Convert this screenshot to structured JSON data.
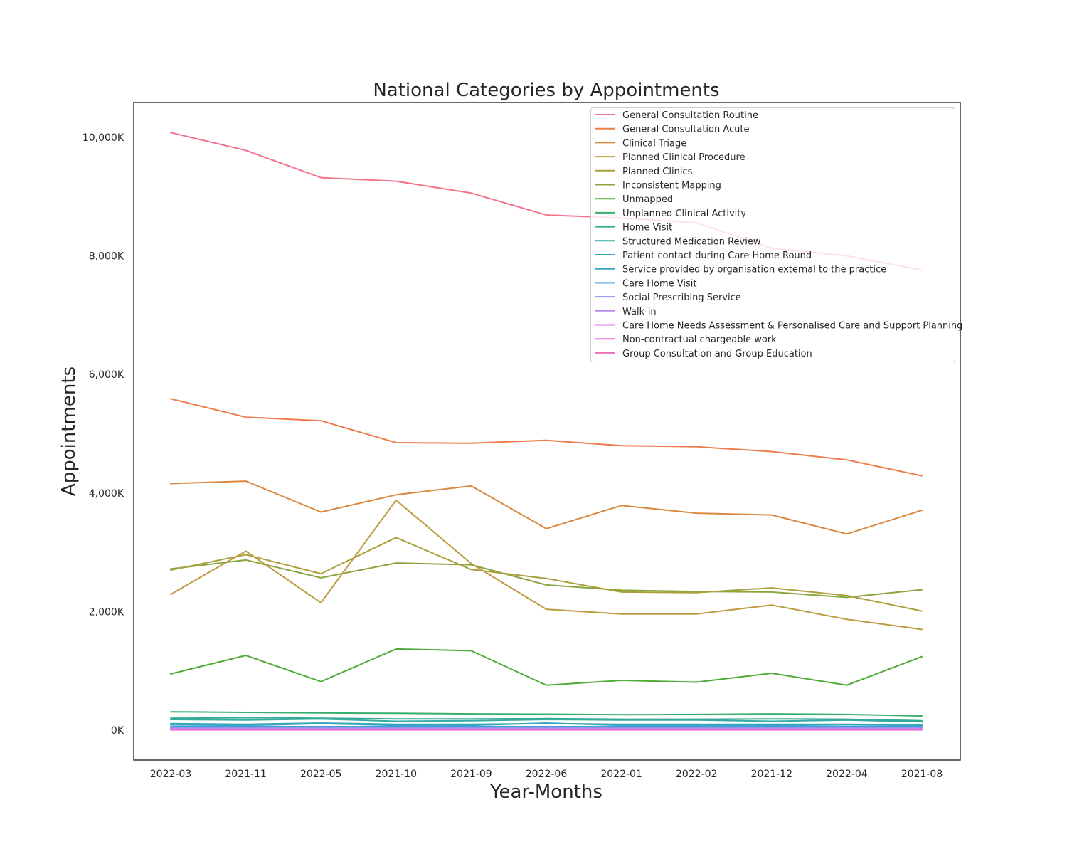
{
  "chart_data": {
    "type": "line",
    "title": "National Categories by Appointments",
    "xlabel": "Year-Months",
    "ylabel": "Appointments",
    "ylim": [
      -500,
      10600
    ],
    "yticks": [
      0,
      2000,
      4000,
      6000,
      8000,
      10000
    ],
    "ytick_labels": [
      "0K",
      "2,000K",
      "4,000K",
      "6,000K",
      "8,000K",
      "10,000K"
    ],
    "categories": [
      "2022-03",
      "2021-11",
      "2022-05",
      "2021-10",
      "2021-09",
      "2022-06",
      "2022-01",
      "2022-02",
      "2021-12",
      "2022-04",
      "2021-08"
    ],
    "grid": false,
    "legend_position": "top-right",
    "series": [
      {
        "name": "General Consultation Routine",
        "color": "#f4718a",
        "values": [
          10080,
          9780,
          9320,
          9260,
          9060,
          8690,
          8640,
          8560,
          8130,
          8000,
          7760
        ]
      },
      {
        "name": "General Consultation Acute",
        "color": "#ef7c4a",
        "values": [
          5590,
          5280,
          5220,
          4850,
          4840,
          4890,
          4800,
          4780,
          4700,
          4560,
          4290
        ]
      },
      {
        "name": "Clinical Triage",
        "color": "#d9883e",
        "values": [
          4160,
          4200,
          3680,
          3970,
          4120,
          3400,
          3790,
          3660,
          3630,
          3310,
          3710
        ]
      },
      {
        "name": "Planned Clinical Procedure",
        "color": "#bc9a3e",
        "values": [
          2290,
          3020,
          2150,
          3880,
          2810,
          2040,
          1960,
          1960,
          2110,
          1870,
          1700
        ]
      },
      {
        "name": "Planned Clinics",
        "color": "#a9a03c",
        "values": [
          2700,
          2960,
          2640,
          3250,
          2710,
          2560,
          2330,
          2320,
          2400,
          2270,
          2010
        ]
      },
      {
        "name": "Inconsistent Mapping",
        "color": "#88a63d",
        "values": [
          2720,
          2870,
          2570,
          2820,
          2790,
          2450,
          2360,
          2340,
          2330,
          2240,
          2370
        ]
      },
      {
        "name": "Unmapped",
        "color": "#4fab37",
        "values": [
          950,
          1260,
          820,
          1370,
          1340,
          760,
          840,
          810,
          960,
          760,
          1240
        ]
      },
      {
        "name": "Unplanned Clinical Activity",
        "color": "#36ae6c",
        "values": [
          310,
          300,
          290,
          285,
          275,
          270,
          260,
          265,
          275,
          265,
          240
        ]
      },
      {
        "name": "Home Visit",
        "color": "#33ab90",
        "values": [
          200,
          210,
          200,
          190,
          190,
          195,
          185,
          185,
          190,
          185,
          160
        ]
      },
      {
        "name": "Structured Medication Review",
        "color": "#35aba4",
        "values": [
          180,
          170,
          190,
          150,
          160,
          180,
          170,
          170,
          150,
          170,
          140
        ]
      },
      {
        "name": "Patient contact during Care Home Round",
        "color": "#37a8b5",
        "values": [
          110,
          100,
          120,
          100,
          100,
          110,
          100,
          100,
          100,
          100,
          90
        ]
      },
      {
        "name": "Service provided by organisation external to the practice",
        "color": "#39a4c6",
        "values": [
          90,
          80,
          110,
          80,
          80,
          120,
          80,
          80,
          80,
          90,
          80
        ]
      },
      {
        "name": "Care Home Visit",
        "color": "#3e9fd9",
        "values": [
          60,
          60,
          60,
          60,
          60,
          60,
          60,
          60,
          60,
          60,
          60
        ]
      },
      {
        "name": "Social Prescribing Service",
        "color": "#8b93ec",
        "values": [
          50,
          50,
          50,
          50,
          50,
          50,
          50,
          50,
          50,
          50,
          50
        ]
      },
      {
        "name": "Walk-in",
        "color": "#b58ae8",
        "values": [
          40,
          40,
          40,
          40,
          40,
          40,
          40,
          40,
          40,
          40,
          40
        ]
      },
      {
        "name": "Care Home Needs Assessment & Personalised Care and Support Planning",
        "color": "#d876e4",
        "values": [
          20,
          20,
          20,
          20,
          20,
          20,
          20,
          20,
          20,
          20,
          20
        ]
      },
      {
        "name": "Non-contractual chargeable work",
        "color": "#e86dd2",
        "values": [
          10,
          10,
          10,
          10,
          10,
          10,
          10,
          10,
          10,
          10,
          10
        ]
      },
      {
        "name": "Group Consultation and Group Education",
        "color": "#f06eb8",
        "values": [
          5,
          5,
          5,
          5,
          5,
          5,
          5,
          5,
          5,
          5,
          5
        ]
      }
    ]
  }
}
